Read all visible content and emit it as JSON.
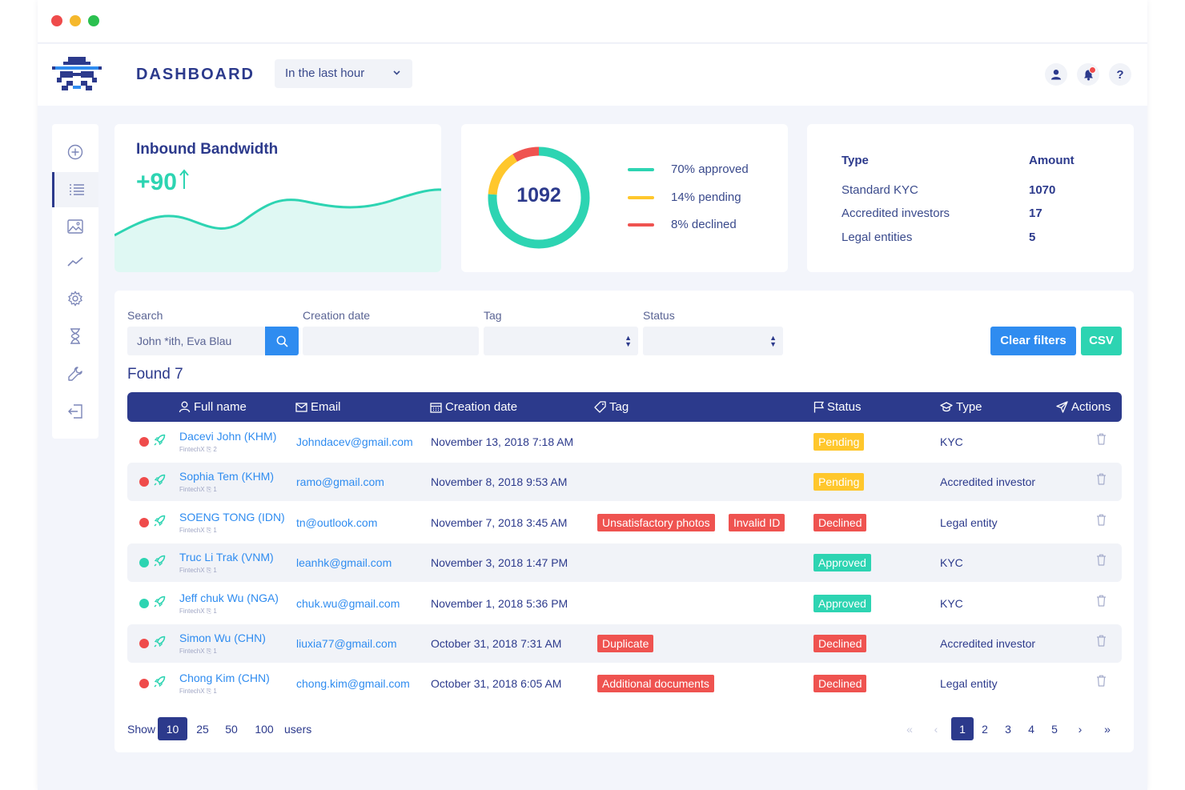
{
  "header": {
    "title": "DASHBOARD",
    "range": "In the last hour"
  },
  "bandwidth": {
    "title": "Inbound Bandwidth",
    "value": "+90"
  },
  "donut": {
    "total": "1092",
    "segments": [
      {
        "label": "70% approved",
        "percent": 70,
        "color": "#2dd4b2"
      },
      {
        "label": "14% pending",
        "percent": 14,
        "color": "#ffc72c"
      },
      {
        "label": "8% declined",
        "percent": 8,
        "color": "#ef5350"
      }
    ]
  },
  "types": {
    "type_header": "Type",
    "amount_header": "Amount",
    "rows": [
      {
        "type": "Standard KYC",
        "amount": "1070"
      },
      {
        "type": "Accredited investors",
        "amount": "17"
      },
      {
        "type": "Legal entities",
        "amount": "5"
      }
    ]
  },
  "filters": {
    "search_label": "Search",
    "search_placeholder": "John *ith, Eva Blau",
    "creation_date_label": "Creation date",
    "tag_label": "Tag",
    "status_label": "Status",
    "clear_label": "Clear filters",
    "csv_label": "CSV"
  },
  "found": "Found 7",
  "table": {
    "headers": {
      "full_name": "Full name",
      "email": "Email",
      "creation_date": "Creation date",
      "tag": "Tag",
      "status": "Status",
      "type": "Type",
      "actions": "Actions"
    },
    "rows": [
      {
        "name": "Dacevi John (KHM)",
        "sub": "FintechX  ⎘ 2",
        "email": "Johndacev@gmail.com",
        "date": "November 13, 2018 7:18 AM",
        "tags": [],
        "status": "Pending",
        "status_kind": "pending",
        "type": "KYC",
        "ok": false
      },
      {
        "name": "Sophia Tem (KHM)",
        "sub": "FintechX  ⎘ 1",
        "email": "ramo@gmail.com",
        "date": "November 8, 2018 9:53 AM",
        "tags": [],
        "status": "Pending",
        "status_kind": "pending",
        "type": "Accredited investor",
        "ok": false
      },
      {
        "name": "SOENG TONG (IDN)",
        "sub": "FintechX  ⎘ 1",
        "email": "tn@outlook.com",
        "date": "November 7, 2018 3:45 AM",
        "tags": [
          "Unsatisfactory photos",
          "Invalid ID"
        ],
        "status": "Declined",
        "status_kind": "declined",
        "type": "Legal entity",
        "ok": false
      },
      {
        "name": "Truc Li Trak (VNM)",
        "sub": "FintechX  ⎘ 1",
        "email": "leanhk@gmail.com",
        "date": "November 3, 2018 1:47 PM",
        "tags": [],
        "status": "Approved",
        "status_kind": "approved",
        "type": "KYC",
        "ok": true
      },
      {
        "name": "Jeff chuk Wu (NGA)",
        "sub": "FintechX  ⎘ 1",
        "email": "chuk.wu@gmail.com",
        "date": "November 1, 2018 5:36 PM",
        "tags": [],
        "status": "Approved",
        "status_kind": "approved",
        "type": "KYC",
        "ok": true
      },
      {
        "name": "Simon Wu (CHN)",
        "sub": "FintechX  ⎘ 1",
        "email": "liuxia77@gmail.com",
        "date": "October 31, 2018 7:31 AM",
        "tags": [
          "Duplicate"
        ],
        "status": "Declined",
        "status_kind": "declined",
        "type": "Accredited investor",
        "ok": false
      },
      {
        "name": "Chong Kim (CHN)",
        "sub": "FintechX  ⎘ 1",
        "email": "chong.kim@gmail.com",
        "date": "October 31, 2018 6:05 AM",
        "tags": [
          "Additional documents"
        ],
        "status": "Declined",
        "status_kind": "declined",
        "type": "Legal entity",
        "ok": false
      }
    ]
  },
  "footer": {
    "show_label": "Show",
    "per_page": [
      "10",
      "25",
      "50",
      "100"
    ],
    "per_page_selected": "10",
    "users_label": "users",
    "pages": [
      "1",
      "2",
      "3",
      "4",
      "5"
    ],
    "current_page": "1",
    "first": "«",
    "prev": "‹",
    "next": "›",
    "last": "»"
  },
  "icons": [
    "user-icon",
    "bell-icon",
    "help-icon",
    "chevron-down-icon",
    "search-icon",
    "plus-circle-icon",
    "list-icon",
    "image-icon",
    "trend-icon",
    "gear-icon",
    "hourglass-icon",
    "wrench-icon",
    "logout-icon",
    "trash-icon",
    "rocket-icon",
    "arrow-up-icon"
  ],
  "colors": {
    "primary": "#2c3a8c",
    "blue": "#2f8cf0",
    "teal": "#2dd4b2",
    "yellow": "#ffc72c",
    "red": "#ef5350"
  }
}
